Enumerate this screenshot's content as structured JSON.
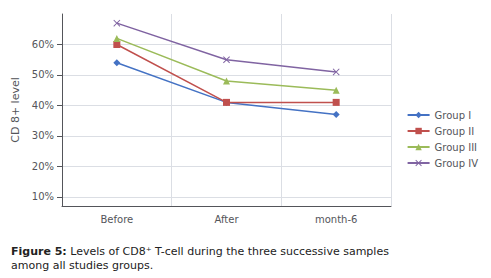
{
  "chart_data": {
    "type": "line",
    "categories": [
      "Before",
      "After",
      "month-6"
    ],
    "series": [
      {
        "name": "Group I",
        "color": "#4472C4",
        "marker": "diamond",
        "values": [
          54,
          41,
          37
        ]
      },
      {
        "name": "Group II",
        "color": "#C0504D",
        "marker": "square",
        "values": [
          60,
          41,
          41
        ]
      },
      {
        "name": "Group III",
        "color": "#9BBB59",
        "marker": "triangle",
        "values": [
          62,
          48,
          45
        ]
      },
      {
        "name": "Group IV",
        "color": "#8064A2",
        "marker": "x",
        "values": [
          67,
          55,
          51
        ]
      }
    ],
    "y_label": "CD 8+ level",
    "ylim": [
      7,
      70
    ],
    "yticks": [
      {
        "value": 10,
        "label": "10%"
      },
      {
        "value": 20,
        "label": "20%"
      },
      {
        "value": 30,
        "label": "30%"
      },
      {
        "value": 40,
        "label": "40%"
      },
      {
        "value": 50,
        "label": "50%"
      },
      {
        "value": 60,
        "label": "60%"
      }
    ],
    "grid": true,
    "legend": "right",
    "annotations": [
      "Figure 5:",
      "Levels of CD8⁺ T-cell during the three successive samples\namong all studies groups."
    ]
  }
}
